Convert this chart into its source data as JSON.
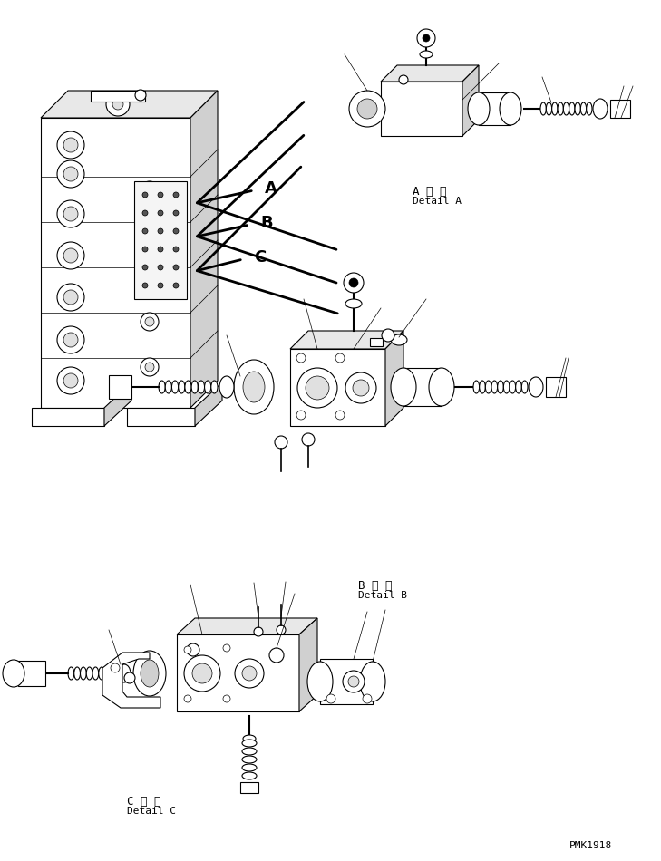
{
  "bg_color": "#ffffff",
  "fig_width": 7.29,
  "fig_height": 9.5,
  "dpi": 100,
  "detail_A_label": "A 詳 細",
  "detail_A_sub": "Detail A",
  "detail_B_label": "B 詳 細",
  "detail_B_sub": "Detail B",
  "detail_C_label": "C 詳 細",
  "detail_C_sub": "Detail C",
  "watermark": "PMK1918",
  "line_color": "#000000",
  "fill_color": "#ffffff"
}
